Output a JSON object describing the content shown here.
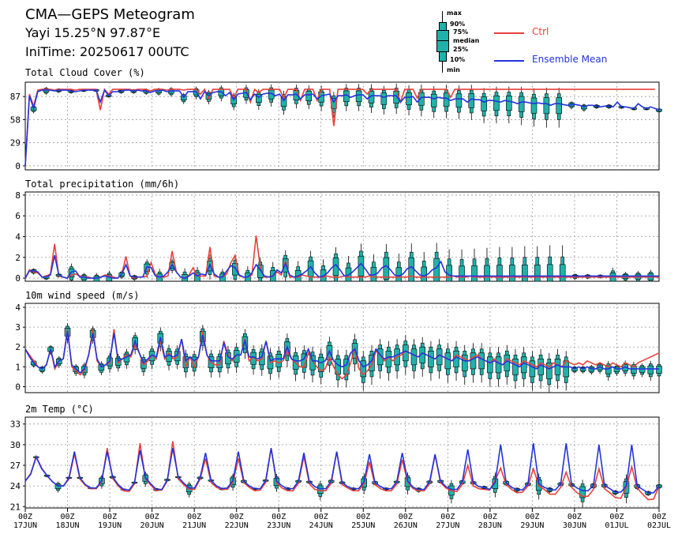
{
  "header": {
    "title": "CMA—GEPS Meteogram",
    "station": "Yayi 15.25°N 97.87°E",
    "initime": "IniTime: 20250617 00UTC"
  },
  "legend": {
    "box_labels": [
      "max",
      "90%",
      "75%",
      "median",
      "25%",
      "10%",
      "min"
    ],
    "ctrl": {
      "label": "Ctrl",
      "color": "#e8403a"
    },
    "mean": {
      "label": "Ensemble Mean",
      "color": "#2233dd"
    },
    "box_color": "#20b2aa"
  },
  "time_axis": {
    "hour_labels": [
      "00Z",
      "00Z",
      "00Z",
      "00Z",
      "00Z",
      "00Z",
      "00Z",
      "00Z",
      "00Z",
      "00Z",
      "00Z",
      "00Z",
      "00Z",
      "00Z",
      "00Z",
      "00Z"
    ],
    "date_labels": [
      "17JUN",
      "18JUN",
      "19JUN",
      "20JUN",
      "21JUN",
      "22JUN",
      "23JUN",
      "24JUN",
      "25JUN",
      "26JUN",
      "27JUN",
      "28JUN",
      "29JUN",
      "30JUN",
      "01JUL",
      "02JUL"
    ]
  },
  "chart_data": [
    {
      "type": "box_line",
      "title": "Total Cloud Cover (%)",
      "yticks": [
        0,
        29,
        58,
        87
      ],
      "ylim": [
        -5,
        105
      ],
      "ctrl": [
        0,
        90,
        75,
        95,
        96,
        96,
        96,
        95,
        96,
        96,
        96,
        96,
        95,
        96,
        96,
        96,
        96,
        96,
        70,
        96,
        90,
        96,
        96,
        96,
        96,
        96,
        95,
        96,
        96,
        96,
        94,
        96,
        96,
        96,
        95,
        96,
        96,
        96,
        95,
        96,
        96,
        96,
        90,
        96,
        85,
        96,
        96,
        96,
        96,
        96,
        85,
        96,
        96,
        96,
        80,
        96,
        92,
        96,
        96,
        96,
        96,
        96,
        85,
        96,
        96,
        96,
        82,
        96,
        96,
        96,
        82,
        96,
        96,
        96,
        50,
        96,
        96,
        96,
        96,
        96,
        96,
        96,
        90,
        96,
        96,
        96,
        96,
        96,
        96,
        96,
        80,
        96,
        96,
        96,
        85,
        96,
        96,
        96,
        96,
        96,
        96,
        96,
        86,
        96,
        96,
        96,
        96,
        96,
        96,
        96,
        96,
        96,
        96,
        96,
        96,
        96,
        96,
        96,
        96,
        96,
        96,
        96,
        96,
        96,
        96,
        96,
        96,
        96,
        96,
        96,
        96,
        96,
        96,
        96,
        96,
        96,
        96,
        96,
        96,
        96,
        96,
        96,
        96,
        96,
        96,
        96,
        96,
        96,
        96,
        96,
        96,
        96
      ],
      "mean": [
        0,
        88,
        72,
        93,
        95,
        95,
        95,
        94,
        95,
        95,
        95,
        94,
        93,
        94,
        95,
        95,
        95,
        95,
        80,
        95,
        88,
        93,
        93,
        94,
        95,
        95,
        94,
        95,
        94,
        94,
        92,
        94,
        94,
        95,
        93,
        94,
        94,
        94,
        86,
        93,
        93,
        93,
        84,
        93,
        88,
        92,
        93,
        93,
        88,
        92,
        83,
        90,
        91,
        92,
        83,
        90,
        86,
        90,
        91,
        91,
        88,
        90,
        82,
        89,
        89,
        90,
        84,
        89,
        89,
        90,
        84,
        88,
        89,
        90,
        80,
        88,
        88,
        89,
        86,
        88,
        89,
        89,
        84,
        88,
        88,
        88,
        86,
        88,
        88,
        88,
        80,
        86,
        86,
        87,
        80,
        86,
        86,
        86,
        84,
        86,
        85,
        85,
        82,
        84,
        84,
        84,
        80,
        84,
        83,
        83,
        80,
        82,
        82,
        81,
        80,
        82,
        81,
        80,
        78,
        80,
        80,
        79,
        78,
        79,
        78,
        78,
        76,
        78,
        78,
        77,
        76,
        77,
        77,
        76,
        74,
        76,
        76,
        75,
        74,
        75,
        75,
        74,
        80,
        74,
        74,
        73,
        72,
        78,
        74,
        72,
        74,
        72,
        70
      ],
      "box_every": 3,
      "box_start": 2,
      "box_spread": [
        10,
        10,
        6,
        6,
        4,
        4,
        4,
        6,
        6,
        8,
        10,
        12,
        14,
        16,
        18,
        20,
        22,
        24,
        26,
        28,
        30,
        30,
        30,
        32,
        32,
        34,
        34,
        36,
        36,
        38,
        38,
        40,
        40,
        42,
        42,
        44,
        44,
        46,
        46,
        48,
        48,
        50,
        50
      ]
    },
    {
      "type": "box_line",
      "title": "Total precipitation (mm/6h)",
      "yticks": [
        0,
        2,
        4,
        6,
        8
      ],
      "ylim": [
        -0.3,
        8.3
      ],
      "ctrl": [
        0,
        0.8,
        0.6,
        0.5,
        0.1,
        0.2,
        0.4,
        3.3,
        0.2,
        0.1,
        0,
        0.3,
        0.4,
        0.2,
        0.1,
        0.1,
        0,
        0,
        0.1,
        0.3,
        0.2,
        0.1,
        0,
        0.4,
        2.1,
        0.2,
        0,
        0.1,
        0.1,
        0.2,
        1.5,
        0.3,
        0.1,
        0.1,
        0.2,
        2.6,
        0.6,
        0.1,
        0,
        0.3,
        1.0,
        0.2,
        0.2,
        0.2,
        3.0,
        0.2,
        0.1,
        0.1,
        0.4,
        1.5,
        2.2,
        0.2,
        0.1,
        0.1,
        0.3,
        4.1,
        1.0,
        0.1,
        0.1,
        0.2,
        0.6,
        0.3,
        1.6,
        0.1,
        0.1,
        0.1,
        0.3,
        0.2,
        0.1,
        0.1,
        0.1,
        0.1,
        0.2,
        0.1,
        0.1,
        0.1,
        0.2,
        0.1,
        0.1,
        0.1,
        0.1,
        0.1,
        0.2,
        0.1,
        0.1,
        0.1,
        0.1,
        0.1,
        0.1,
        0.1,
        0.1,
        0.1,
        0.2,
        0.1,
        0.1,
        0.1,
        0.1,
        0.1,
        0.1,
        0.1,
        0.1,
        0.1,
        0.2,
        0.1,
        0.1,
        0.1,
        0.2,
        0.1,
        0.1,
        0.1,
        0.1,
        0.1,
        0.1,
        0.1,
        0.1,
        0.1,
        0.1,
        0.1,
        0.1,
        0.1,
        0.1,
        0.1,
        0.1,
        0.1,
        0.1,
        0.1,
        0.1,
        0.1,
        0.1,
        0.1,
        0.1,
        0.1,
        0.1,
        0.1,
        0.1,
        0.1,
        0.1,
        0.1,
        0.1,
        0.1,
        0.1,
        0.1,
        0.1,
        0.1,
        0.1,
        0.1,
        0.1,
        0.1,
        0.1,
        0.1,
        0.1,
        0.1,
        0.1,
        0.1,
        0.1
      ],
      "mean": [
        0,
        0.7,
        0.7,
        0.6,
        0.1,
        0.1,
        0.3,
        2.2,
        0.3,
        0.1,
        0,
        0.6,
        0.7,
        0.1,
        0.1,
        0,
        0,
        0,
        0.1,
        0.2,
        0.1,
        0,
        0,
        0.4,
        1.3,
        0.2,
        0.1,
        0.1,
        0.1,
        1.1,
        1.0,
        0.2,
        0.1,
        0.2,
        0.6,
        1.3,
        0.6,
        0.1,
        0,
        0.2,
        0.5,
        0.2,
        0.4,
        0.3,
        1.3,
        0.4,
        0.1,
        0.1,
        0.7,
        1.2,
        1.0,
        0.3,
        0.1,
        0.1,
        0.5,
        1.3,
        0.8,
        0.2,
        0.1,
        0.2,
        0.8,
        0.5,
        1.4,
        0.3,
        0.1,
        0.2,
        0.4,
        0.7,
        1.1,
        0.5,
        0.1,
        0.2,
        0.5,
        1.0,
        1.3,
        0.8,
        0.2,
        0.3,
        0.6,
        1.0,
        1.4,
        0.9,
        0.3,
        0.3,
        0.5,
        1.0,
        1.2,
        0.8,
        0.3,
        0.2,
        0.4,
        0.9,
        1.1,
        0.7,
        0.3,
        0.2,
        0.4,
        0.8,
        1.0,
        1.6,
        0.6,
        0.3,
        0.2,
        0.2,
        0.2,
        0.2,
        0.2,
        0.2,
        0.2,
        0.2,
        0.2,
        0.2,
        0.2,
        0.2,
        0.2,
        0.2,
        0.2,
        0.2,
        0.2,
        0.2,
        0.2,
        0.2,
        0.2,
        0.2,
        0.2,
        0.2,
        0.2,
        0.2,
        0.2,
        0.2,
        0.2,
        0.2,
        0.2,
        0.2,
        0.2,
        0.2,
        0.2,
        0.2,
        0.2,
        0.2,
        0.2,
        0.2,
        0.2,
        0.2,
        0.2,
        0.2,
        0.2,
        0.2,
        0.2,
        0.2,
        0.2,
        0.2
      ],
      "box_every": 3,
      "box_start": 2,
      "box_spread": [
        0.6,
        0.5,
        0.4,
        2,
        1,
        1.2,
        1.5,
        0.8,
        0.6,
        1.8,
        2,
        1.4,
        2.4,
        2.2,
        2.4,
        2,
        2.8,
        2.6,
        3,
        3.4,
        3.2,
        3.6,
        3.8,
        4,
        4.2,
        4.6,
        4.8,
        5,
        5.2,
        5.4,
        5.6,
        5.8,
        6,
        6.2,
        6.4,
        6.6,
        6.8,
        7,
        7,
        7.2,
        7.2,
        7.4,
        7.4
      ]
    },
    {
      "type": "box_line",
      "title": "10m wind speed (m/s)",
      "yticks": [
        0,
        1,
        2,
        3,
        4
      ],
      "ylim": [
        -0.3,
        4.2
      ],
      "ctrl": [
        1.9,
        1.6,
        1.3,
        1.0,
        0.9,
        1.1,
        1.9,
        0.9,
        1.3,
        1.4,
        2.9,
        1.0,
        0.8,
        0.6,
        0.8,
        1.6,
        2.9,
        1.3,
        1.0,
        1.1,
        1.2,
        2.9,
        1.2,
        1.4,
        1.6,
        1.5,
        2.1,
        1.7,
        1.1,
        1.3,
        1.6,
        1.4,
        2.3,
        1.4,
        1.7,
        1.4,
        1.5,
        2.4,
        1.0,
        1.5,
        1.0,
        1.5,
        2.8,
        1.6,
        1.2,
        1.1,
        1.1,
        2.3,
        1.6,
        1.3,
        1.6,
        1.6,
        2.4,
        1.3,
        1.5,
        1.3,
        1.4,
        2.3,
        1.2,
        1.3,
        1.2,
        1.3,
        1.8,
        1.4,
        1.2,
        1.0,
        1.0,
        1.7,
        1.3,
        1.0,
        0.8,
        0.9,
        1.5,
        1.0,
        0.6,
        0.4,
        0.6,
        1.2,
        1.9,
        0.9,
        0.6,
        0.8,
        1.1,
        1.8,
        1.6,
        1.3,
        1.5,
        1.3,
        1.5,
        1.6,
        1.8,
        1.7,
        1.6,
        1.5,
        1.7,
        1.6,
        1.5,
        1.4,
        1.6,
        1.5,
        1.4,
        1.3,
        1.6,
        1.5,
        1.4,
        1.3,
        1.5,
        1.6,
        1.4,
        1.3,
        1.2,
        1.4,
        1.2,
        1.1,
        1.4,
        1.3,
        1.2,
        1.1,
        1.3,
        1.2,
        1.1,
        1.0,
        1.2,
        1.1,
        1.0,
        1.2,
        1.1,
        1.0,
        1.3,
        1.2,
        1.1,
        1.2,
        1.1,
        1.3,
        1.2,
        1.1,
        1.2,
        1.1,
        1.0,
        1.2,
        1.1,
        1.0,
        1.2,
        1.1,
        1.0,
        1.2,
        1.3,
        1.4,
        1.5,
        1.6,
        1.7
      ],
      "mean": [
        1.9,
        1.5,
        1.2,
        1.0,
        0.9,
        1.1,
        1.9,
        1.0,
        1.3,
        1.4,
        2.8,
        1.1,
        0.9,
        0.7,
        0.9,
        1.6,
        2.7,
        1.4,
        1.0,
        1.1,
        1.3,
        2.7,
        1.3,
        1.4,
        1.5,
        1.6,
        2.3,
        1.7,
        1.2,
        1.4,
        1.6,
        1.5,
        2.5,
        1.5,
        1.6,
        1.5,
        1.6,
        2.4,
        1.3,
        1.5,
        1.3,
        1.5,
        2.6,
        1.6,
        1.3,
        1.3,
        1.3,
        2.2,
        1.5,
        1.4,
        1.6,
        1.6,
        2.3,
        1.5,
        1.5,
        1.4,
        1.5,
        2.3,
        1.3,
        1.4,
        1.4,
        1.4,
        2.0,
        1.4,
        1.3,
        1.3,
        1.4,
        1.9,
        1.3,
        1.3,
        1.2,
        1.3,
        1.8,
        1.3,
        1.1,
        1.0,
        1.1,
        1.7,
        1.9,
        1.3,
        1.0,
        1.1,
        1.3,
        1.9,
        1.6,
        1.4,
        1.5,
        1.5,
        1.6,
        1.7,
        1.8,
        1.7,
        1.6,
        1.5,
        1.7,
        1.6,
        1.5,
        1.4,
        1.6,
        1.5,
        1.4,
        1.3,
        1.5,
        1.4,
        1.3,
        1.3,
        1.4,
        1.5,
        1.4,
        1.3,
        1.2,
        1.3,
        1.2,
        1.1,
        1.3,
        1.2,
        1.1,
        1.0,
        1.2,
        1.1,
        1.0,
        0.9,
        1.1,
        1.0,
        0.9,
        1.0,
        1.1,
        1.0,
        1.0,
        1.0,
        0.9,
        1.0,
        0.9,
        1.0,
        0.9,
        0.9,
        1.0,
        0.9,
        0.9,
        1.0,
        0.9,
        0.9,
        1.0,
        0.9,
        0.9,
        0.9,
        0.9,
        0.9,
        0.9,
        0.9,
        0.9
      ],
      "box_every": 2,
      "box_start": 2,
      "box_spread": [
        0.4,
        0.4,
        0.5,
        0.6,
        1.0,
        0.6,
        0.8,
        0.9,
        0.7,
        1.0,
        0.9,
        1.0,
        1.1,
        1.1,
        1.2,
        1.2,
        1.3,
        1.2,
        1.4,
        1.3,
        1.3,
        1.4,
        1.4,
        1.4,
        1.5,
        1.5,
        1.5,
        1.6,
        1.6,
        1.6,
        1.7,
        1.7,
        1.7,
        1.8,
        1.8,
        1.8,
        1.9,
        1.9,
        1.9,
        2.0,
        2.0,
        2.0,
        2.0,
        2.0,
        2.0,
        2.0,
        2.0,
        2.0,
        2.0,
        2.0,
        2.0,
        2.0,
        2.0,
        2.0,
        2.0,
        2.0,
        2.0,
        2.0,
        2.0,
        2.0,
        2.0,
        2.0,
        2.0,
        2.0
      ]
    },
    {
      "type": "box_line",
      "title": "2m Temp (°C)",
      "yticks": [
        21,
        24,
        27,
        30,
        33
      ],
      "ylim": [
        20.8,
        34
      ],
      "ctrl": [
        24.7,
        25.8,
        28.3,
        26.6,
        25.5,
        24.6,
        24.0,
        24.0,
        25.0,
        28.7,
        25.0,
        24.1,
        23.6,
        23.6,
        24.6,
        29.5,
        25.1,
        24.0,
        23.3,
        23.2,
        24.3,
        30.2,
        25.0,
        24.1,
        23.3,
        23.4,
        24.7,
        30.5,
        25.0,
        24.2,
        23.5,
        23.5,
        25.0,
        28.0,
        24.5,
        23.8,
        23.5,
        23.5,
        24.5,
        28.0,
        24.5,
        23.8,
        23.3,
        23.4,
        24.5,
        29.5,
        24.4,
        23.7,
        23.3,
        23.3,
        24.4,
        28.3,
        24.3,
        23.5,
        23.3,
        23.3,
        24.4,
        29.0,
        24.2,
        23.7,
        23.3,
        23.3,
        24.3,
        27.5,
        24.2,
        23.6,
        23.3,
        23.3,
        24.3,
        27.8,
        24.5,
        23.6,
        23.3,
        23.3,
        24.3,
        28.5,
        24.5,
        23.7,
        23.3,
        23.2,
        24.2,
        27.0,
        24.0,
        23.6,
        23.5,
        23.4,
        24.8,
        26.6,
        24.2,
        23.5,
        23.0,
        23.1,
        24.0,
        26.5,
        24.0,
        23.5,
        22.8,
        22.8,
        23.8,
        26.0,
        23.8,
        23.0,
        22.5,
        22.5,
        23.5,
        26.5,
        23.6,
        23.0,
        22.3,
        22.2,
        23.8,
        26.8,
        23.7,
        22.8,
        22.0,
        22.1,
        24.0
      ],
      "mean": [
        24.7,
        25.7,
        28.2,
        26.5,
        25.5,
        24.6,
        24.0,
        24.0,
        25.2,
        29.0,
        25.2,
        24.2,
        23.7,
        23.7,
        24.8,
        29.0,
        25.3,
        24.2,
        23.5,
        23.4,
        24.5,
        29.2,
        25.2,
        24.3,
        23.5,
        23.5,
        24.9,
        29.5,
        25.3,
        24.4,
        23.7,
        23.7,
        25.2,
        28.8,
        24.8,
        24.0,
        23.6,
        23.7,
        24.8,
        29.0,
        24.7,
        24.0,
        23.6,
        23.6,
        24.8,
        29.5,
        24.7,
        24.0,
        23.6,
        23.6,
        24.7,
        28.8,
        24.6,
        23.9,
        23.6,
        23.6,
        24.7,
        29.0,
        24.5,
        23.9,
        23.6,
        23.6,
        24.6,
        28.6,
        24.5,
        23.9,
        23.6,
        23.6,
        24.6,
        28.8,
        24.7,
        23.8,
        23.5,
        23.5,
        24.6,
        28.6,
        24.7,
        23.9,
        23.5,
        23.5,
        24.6,
        29.3,
        24.5,
        23.9,
        23.8,
        23.5,
        24.5,
        30.0,
        24.5,
        23.8,
        23.5,
        23.4,
        24.3,
        30.2,
        24.3,
        23.8,
        23.5,
        23.4,
        24.3,
        30.2,
        24.2,
        23.7,
        23.3,
        23.3,
        24.1,
        30.0,
        24.1,
        23.6,
        23.1,
        23.1,
        24.0,
        30.0,
        24.0,
        23.5,
        23.0,
        23.0,
        24.0
      ],
      "box_every": 2,
      "box_start": 2,
      "box_spread": [
        0.3,
        0.4,
        1.6,
        0.3,
        0.3,
        0.3,
        2.0,
        0.5,
        0.3,
        0.3,
        2.2,
        0.5,
        0.4,
        0.3,
        2.3,
        0.5,
        0.4,
        0.4,
        2.5,
        0.6,
        0.4,
        0.4,
        2.6,
        0.6,
        0.5,
        0.5,
        2.8,
        0.7,
        0.5,
        0.5,
        3.0,
        0.7,
        0.5,
        0.5,
        3.2,
        0.8,
        0.6,
        0.6,
        3.4,
        0.8,
        0.6,
        0.6,
        3.6,
        0.9,
        0.7,
        0.7,
        3.8,
        0.9,
        0.7,
        0.7,
        4.0,
        1.0,
        0.8,
        0.8,
        4.2,
        1.0,
        0.8,
        0.8,
        4.4,
        1.0
      ]
    }
  ]
}
